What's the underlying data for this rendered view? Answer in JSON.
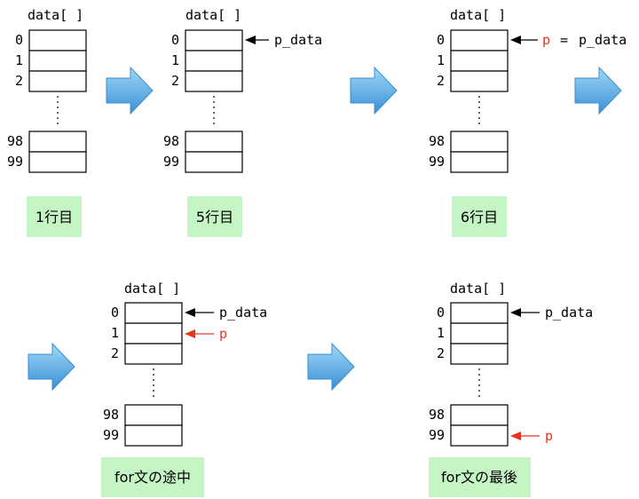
{
  "colors": {
    "arrow_fill_top": "#8fd0f5",
    "arrow_fill_bottom": "#3a92d8",
    "arrow_stroke": "#3b8fd0",
    "label_bg": "#c5f5c5",
    "pointer_black": "#000000",
    "pointer_red": "#e8321e",
    "cell_stroke": "#000000"
  },
  "steps": [
    {
      "array_title": "data[ ]",
      "indices": [
        "0",
        "1",
        "2",
        "98",
        "99"
      ],
      "label": "1行目"
    },
    {
      "array_title": "data[ ]",
      "indices": [
        "0",
        "1",
        "2",
        "98",
        "99"
      ],
      "label": "5行目",
      "pointer_text": "p_data"
    },
    {
      "array_title": "data[ ]",
      "indices": [
        "0",
        "1",
        "2",
        "98",
        "99"
      ],
      "label": "6行目",
      "pointer_p": "p",
      "pointer_eq": "=",
      "pointer_text": "p_data"
    },
    {
      "array_title": "data[ ]",
      "indices": [
        "0",
        "1",
        "2",
        "98",
        "99"
      ],
      "label": "for文の途中",
      "pointer_text": "p_data",
      "pointer_p": "p"
    },
    {
      "array_title": "data[ ]",
      "indices": [
        "0",
        "1",
        "2",
        "98",
        "99"
      ],
      "label": "for文の最後",
      "pointer_text": "p_data",
      "pointer_p": "p"
    }
  ]
}
